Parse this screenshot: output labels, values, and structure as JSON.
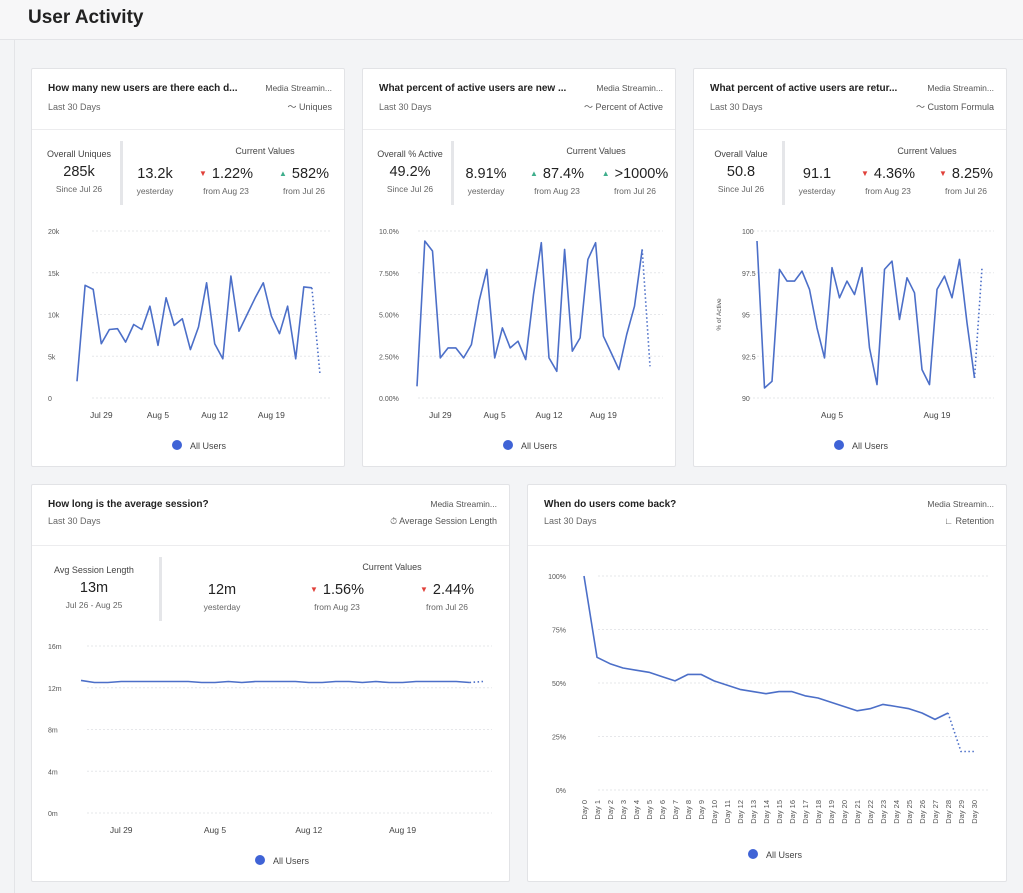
{
  "page": {
    "title": "User Activity"
  },
  "colors": {
    "line": "#4c6fc8",
    "legend_dot": "#3f63d6",
    "down": "#e0413a",
    "up": "#3fae8c"
  },
  "cards": [
    {
      "title": "How many new users are there each d...",
      "subtitle": "Last 30 Days",
      "source": "Media Streamin...",
      "metric": "Uniques",
      "metric_icon": "line-chart-icon",
      "overall": {
        "label": "Overall Uniques",
        "value": "285k",
        "note": "Since Jul 26"
      },
      "yesterday": {
        "value": "13.2k",
        "note": "yesterday"
      },
      "current_label": "Current Values",
      "changes": [
        {
          "dir": "down",
          "value": "1.22%",
          "note": "from Aug 23"
        },
        {
          "dir": "up",
          "value": "582%",
          "note": "from Jul 26"
        }
      ],
      "legend": "All Users"
    },
    {
      "title": "What percent of active users are new ...",
      "subtitle": "Last 30 Days",
      "source": "Media Streamin...",
      "metric": "Percent of Active",
      "metric_icon": "line-chart-icon",
      "overall": {
        "label": "Overall % Active",
        "value": "49.2%",
        "note": "Since Jul 26"
      },
      "yesterday": {
        "value": "8.91%",
        "note": "yesterday"
      },
      "current_label": "Current Values",
      "changes": [
        {
          "dir": "up",
          "value": "87.4%",
          "note": "from Aug 23"
        },
        {
          "dir": "up",
          "value": ">1000%",
          "note": "from Jul 26"
        }
      ],
      "legend": "All Users"
    },
    {
      "title": "What percent of active users are retur...",
      "subtitle": "Last 30 Days",
      "source": "Media Streamin...",
      "metric": "Custom Formula",
      "metric_icon": "line-chart-icon",
      "overall": {
        "label": "Overall Value",
        "value": "50.8",
        "note": "Since Jul 26"
      },
      "yesterday": {
        "value": "91.1",
        "note": "yesterday"
      },
      "current_label": "Current Values",
      "changes": [
        {
          "dir": "down",
          "value": "4.36%",
          "note": "from Aug 23"
        },
        {
          "dir": "down",
          "value": "8.25%",
          "note": "from Jul 26"
        }
      ],
      "legend": "All Users"
    },
    {
      "title": "How long is the average session?",
      "subtitle": "Last 30 Days",
      "source": "Media Streamin...",
      "metric": "Average Session Length",
      "metric_icon": "stopwatch-icon",
      "overall": {
        "label": "Avg Session Length",
        "value": "13m",
        "note": "Jul 26 - Aug 25"
      },
      "yesterday": {
        "value": "12m",
        "note": "yesterday"
      },
      "current_label": "Current Values",
      "changes": [
        {
          "dir": "down",
          "value": "1.56%",
          "note": "from Aug 23"
        },
        {
          "dir": "down",
          "value": "2.44%",
          "note": "from Jul 26"
        }
      ],
      "legend": "All Users"
    },
    {
      "title": "When do users come back?",
      "subtitle": "Last 30 Days",
      "source": "Media Streamin...",
      "metric": "Retention",
      "metric_icon": "retention-icon",
      "legend": "All Users"
    }
  ],
  "chart_data": [
    {
      "type": "line",
      "yticks": [
        "0",
        "5k",
        "10k",
        "15k",
        "20k"
      ],
      "ylim": [
        0,
        20000
      ],
      "xticks": [
        "Jul 29",
        "Aug 5",
        "Aug 12",
        "Aug 19"
      ],
      "xtick_days": [
        3,
        10,
        17,
        24
      ],
      "values": [
        2000,
        13500,
        13000,
        6500,
        8200,
        8300,
        6700,
        8800,
        8200,
        11000,
        6300,
        12000,
        8700,
        9500,
        5800,
        8500,
        13800,
        6500,
        4700,
        14600,
        8000,
        10000,
        12000,
        13800,
        9800,
        7700,
        11000,
        4700,
        13300,
        13200,
        2800
      ],
      "last_segment": "dotted"
    },
    {
      "type": "line",
      "yticks": [
        "0.00%",
        "2.50%",
        "5.00%",
        "7.50%",
        "10.0%"
      ],
      "ylim": [
        0,
        10
      ],
      "xticks": [
        "Jul 29",
        "Aug 5",
        "Aug 12",
        "Aug 19"
      ],
      "xtick_days": [
        3,
        10,
        17,
        24
      ],
      "values": [
        0.7,
        9.4,
        8.8,
        2.4,
        3.0,
        3.0,
        2.4,
        3.2,
        5.8,
        7.7,
        2.4,
        4.2,
        3.0,
        3.4,
        2.3,
        6.2,
        9.3,
        2.4,
        1.6,
        8.9,
        2.8,
        3.6,
        8.3,
        9.3,
        3.7,
        2.7,
        1.7,
        3.8,
        5.5,
        8.9,
        1.9
      ],
      "last_segment": "dotted"
    },
    {
      "type": "line",
      "ylabel": "% of Active",
      "yticks": [
        "90",
        "92.5",
        "95",
        "97.5",
        "100"
      ],
      "ylim": [
        90,
        100
      ],
      "xticks": [
        "Aug 5",
        "Aug 19"
      ],
      "xtick_days": [
        10,
        24
      ],
      "values": [
        99.4,
        90.6,
        91,
        97.7,
        97,
        97,
        97.6,
        96.5,
        94.2,
        92.4,
        97.8,
        96,
        97,
        96.2,
        97.8,
        93,
        90.8,
        97.7,
        98.2,
        94.7,
        97.2,
        96.3,
        91.7,
        90.8,
        96.5,
        97.3,
        96,
        98.3,
        94.5,
        91.2,
        97.8
      ],
      "last_segment": "dotted"
    },
    {
      "type": "line",
      "yticks": [
        "0m",
        "4m",
        "8m",
        "12m",
        "16m"
      ],
      "ylim": [
        0,
        16
      ],
      "xticks": [
        "Jul 29",
        "Aug 5",
        "Aug 12",
        "Aug 19"
      ],
      "xtick_days": [
        3,
        10,
        17,
        24
      ],
      "values": [
        12.7,
        12.5,
        12.5,
        12.6,
        12.6,
        12.6,
        12.6,
        12.6,
        12.6,
        12.5,
        12.5,
        12.6,
        12.5,
        12.6,
        12.6,
        12.6,
        12.6,
        12.5,
        12.5,
        12.6,
        12.6,
        12.5,
        12.6,
        12.5,
        12.5,
        12.6,
        12.6,
        12.6,
        12.6,
        12.5,
        12.6
      ],
      "last_segment": "dotted"
    },
    {
      "type": "line",
      "yticks": [
        "0%",
        "25%",
        "50%",
        "75%",
        "100%"
      ],
      "ylim": [
        0,
        100
      ],
      "xticks": [
        "Day 0",
        "Day 1",
        "Day 2",
        "Day 3",
        "Day 4",
        "Day 5",
        "Day 6",
        "Day 7",
        "Day 8",
        "Day 9",
        "Day 10",
        "Day 11",
        "Day 12",
        "Day 13",
        "Day 14",
        "Day 15",
        "Day 16",
        "Day 17",
        "Day 18",
        "Day 19",
        "Day 20",
        "Day 21",
        "Day 22",
        "Day 23",
        "Day 24",
        "Day 25",
        "Day 26",
        "Day 27",
        "Day 28",
        "Day 29",
        "Day 30"
      ],
      "values": [
        100,
        62,
        59,
        57,
        56,
        55,
        53,
        51,
        54,
        54,
        51,
        49,
        47,
        46,
        45,
        46,
        46,
        44,
        43,
        41,
        39,
        37,
        38,
        40,
        39,
        38,
        36,
        33,
        36,
        18,
        18
      ],
      "dotted_from": 28
    }
  ]
}
